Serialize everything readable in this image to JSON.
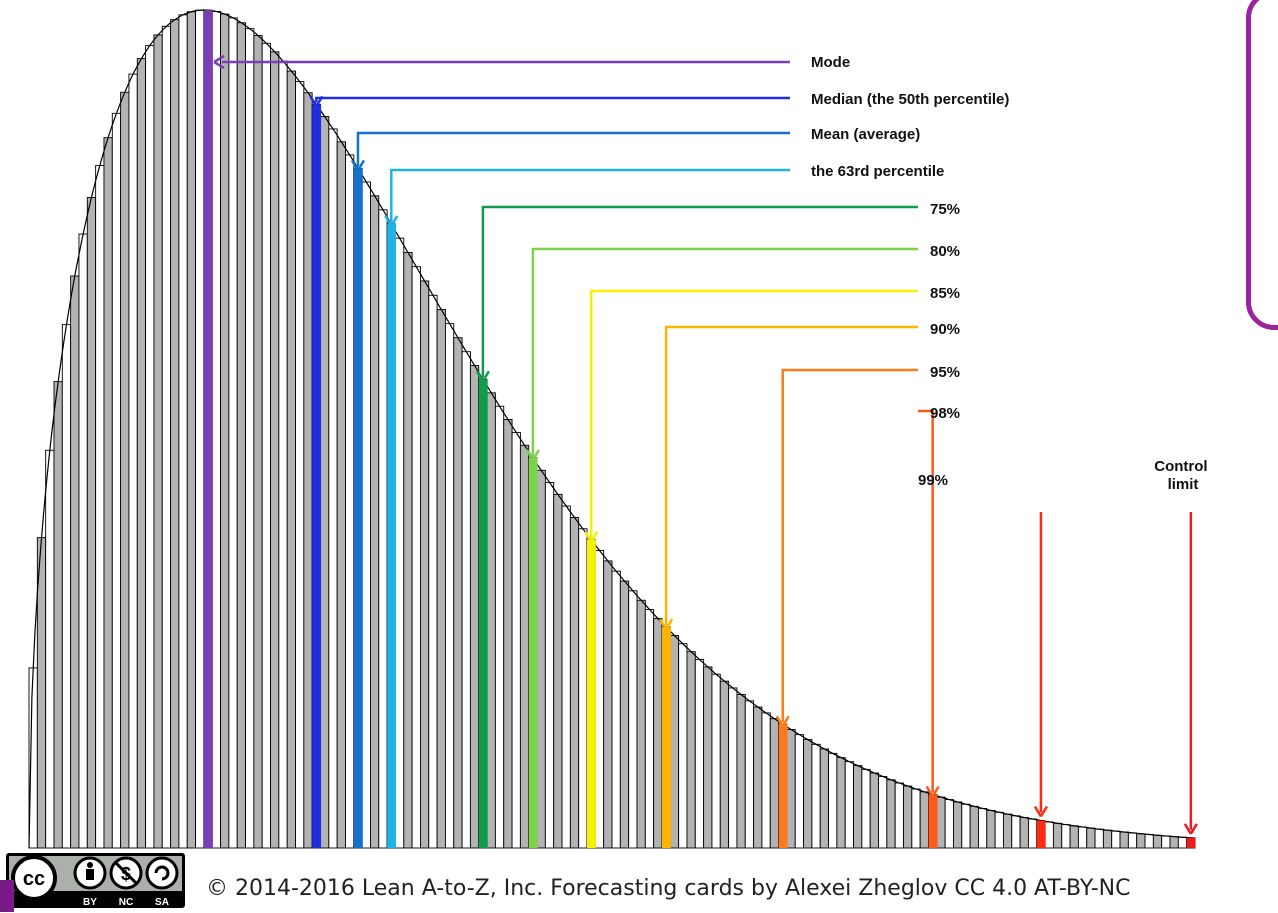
{
  "chart_data": {
    "type": "bar",
    "title": "",
    "xlabel": "",
    "ylabel": "",
    "bins": 140,
    "distribution_shape": "right-skewed (Weibull-like, shape 1.5)",
    "bar_style": "alternating white and gray bars with black outlines",
    "annotations": [
      {
        "label": "Mode",
        "quantile": 0.26,
        "color": "#7a3fb5"
      },
      {
        "label": "Median (the 50th percentile)",
        "quantile": 0.5,
        "color": "#1f2fe0"
      },
      {
        "label": "Mean (average)",
        "quantile": 0.575,
        "color": "#1473c8"
      },
      {
        "label": "the 63rd percentile",
        "quantile": 0.63,
        "color": "#1fb3e8"
      },
      {
        "label": "75%",
        "quantile": 0.75,
        "color": "#119c4b"
      },
      {
        "label": "80%",
        "quantile": 0.8,
        "color": "#7ed24a"
      },
      {
        "label": "85%",
        "quantile": 0.85,
        "color": "#f5f200"
      },
      {
        "label": "90%",
        "quantile": 0.9,
        "color": "#ffb400"
      },
      {
        "label": "95%",
        "quantile": 0.95,
        "color": "#ff7a1a"
      },
      {
        "label": "98%",
        "quantile": 0.98,
        "color": "#ff5a1a"
      },
      {
        "label": "99%",
        "quantile": 0.99,
        "color": "#ff2a14"
      },
      {
        "label": "Control limit",
        "quantile": 0.999,
        "color": "#e81e1e"
      }
    ]
  },
  "footer": {
    "copyright": "© 2014-2016  Lean A-to-Z, Inc. Forecasting cards by Alexei Zheglov CC 4.0 AT-BY-NC"
  },
  "license_badge": {
    "text": "cc",
    "sublabels": [
      "BY",
      "NC",
      "SA"
    ]
  },
  "colors": {
    "bar_gray": "#b3b3b3",
    "bar_white": "#ffffff",
    "outline": "#000000",
    "frame": "#9b239e"
  }
}
